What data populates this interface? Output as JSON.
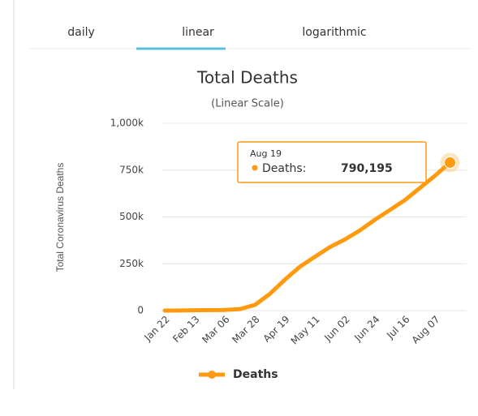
{
  "tabs": [
    "daily",
    "linear",
    "logarithmic"
  ],
  "chart_data": {
    "type": "line",
    "title": "Total Deaths",
    "subtitle": "(Linear Scale)",
    "y_label": "Total Coronavirus Deaths",
    "categories": [
      "Jan 22",
      null,
      "Feb 13",
      null,
      "Mar 06",
      null,
      "Mar 28",
      null,
      "Apr 19",
      null,
      "May 11",
      null,
      "Jun 02",
      null,
      "Jun 24",
      null,
      "Jul 16",
      null,
      "Aug 07",
      null
    ],
    "series": [
      {
        "name": "Deaths",
        "color": "#ff9a0f",
        "values": [
          17,
          362,
          1400,
          2700,
          3500,
          7900,
          30000,
          89000,
          165000,
          234000,
          287000,
          339000,
          380000,
          428000,
          485000,
          537000,
          590000,
          655000,
          720000,
          790195
        ]
      }
    ],
    "ylim": [
      0,
      1000000
    ],
    "yticks": [
      0,
      {
        "value": 250000,
        "label": "250k"
      },
      {
        "value": 500000,
        "label": "500k"
      },
      {
        "value": 750000,
        "label": "750k"
      },
      {
        "value": 1000000,
        "label": "1,000k"
      }
    ],
    "grid": true,
    "tooltip": {
      "date": "Aug 19",
      "label": "Deaths:",
      "value": 790195,
      "value_label": "790,195"
    }
  }
}
